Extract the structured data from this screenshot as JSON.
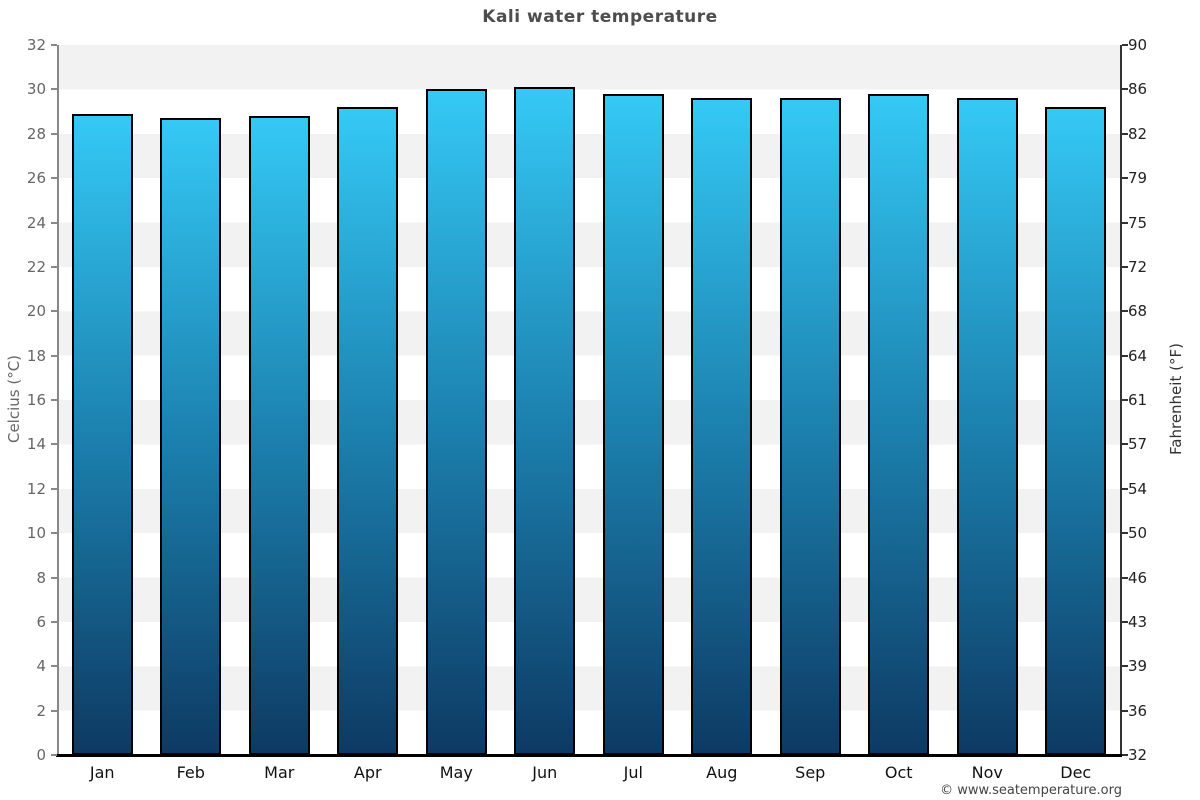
{
  "chart_data": {
    "type": "bar",
    "title": "Kali water temperature",
    "categories": [
      "Jan",
      "Feb",
      "Mar",
      "Apr",
      "May",
      "Jun",
      "Jul",
      "Aug",
      "Sep",
      "Oct",
      "Nov",
      "Dec"
    ],
    "values": [
      28.9,
      28.7,
      28.8,
      29.2,
      30.0,
      30.1,
      29.8,
      29.6,
      29.6,
      29.8,
      29.6,
      29.2
    ],
    "ylabel_left": "Celcius (°C)",
    "ylabel_right": "Fahrenheit (°F)",
    "ylim": [
      0,
      32
    ],
    "yticks_celsius": [
      32,
      30,
      28,
      26,
      24,
      22,
      20,
      18,
      16,
      14,
      12,
      10,
      8,
      6,
      4,
      2,
      0
    ],
    "yticks_fahrenheit": [
      90,
      86,
      82,
      79,
      75,
      72,
      68,
      64,
      61,
      57,
      54,
      50,
      46,
      43,
      39,
      36,
      32
    ],
    "legend": "none",
    "grid": "alternating-bands",
    "colors": {
      "bar_top": "#35c9f5",
      "bar_mid": "#1c81af",
      "bar_bottom": "#0d3a63",
      "bar_border": "#000000",
      "band_gray": "#f2f2f2",
      "band_white": "#ffffff",
      "title": "#4d4d4d",
      "left_axis": "#888888",
      "right_axis": "#333333",
      "baseline": "#000000"
    },
    "footer": "© www.seatemperature.org"
  }
}
